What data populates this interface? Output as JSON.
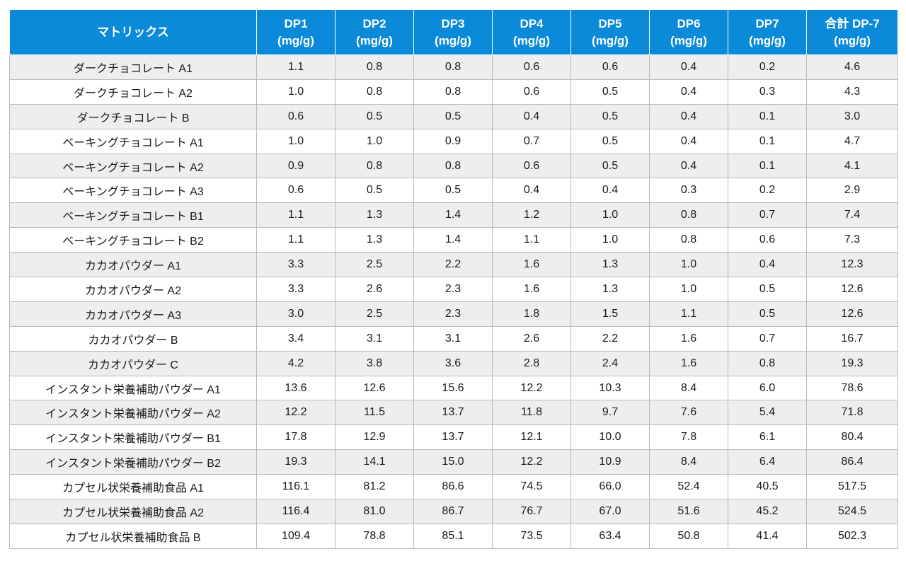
{
  "table": {
    "headers": [
      {
        "l1": "マトリックス",
        "l2": ""
      },
      {
        "l1": "DP1",
        "l2": "(mg/g)"
      },
      {
        "l1": "DP2",
        "l2": "(mg/g)"
      },
      {
        "l1": "DP3",
        "l2": "(mg/g)"
      },
      {
        "l1": "DP4",
        "l2": "(mg/g)"
      },
      {
        "l1": "DP5",
        "l2": "(mg/g)"
      },
      {
        "l1": "DP6",
        "l2": "(mg/g)"
      },
      {
        "l1": "DP7",
        "l2": "(mg/g)"
      },
      {
        "l1": "合計 DP-7",
        "l2": "(mg/g)"
      }
    ],
    "rows": [
      [
        "ダークチョコレート A1",
        "1.1",
        "0.8",
        "0.8",
        "0.6",
        "0.6",
        "0.4",
        "0.2",
        "4.6"
      ],
      [
        "ダークチョコレート A2",
        "1.0",
        "0.8",
        "0.8",
        "0.6",
        "0.5",
        "0.4",
        "0.3",
        "4.3"
      ],
      [
        "ダークチョコレート B",
        "0.6",
        "0.5",
        "0.5",
        "0.4",
        "0.5",
        "0.4",
        "0.1",
        "3.0"
      ],
      [
        "ベーキングチョコレート A1",
        "1.0",
        "1.0",
        "0.9",
        "0.7",
        "0.5",
        "0.4",
        "0.1",
        "4.7"
      ],
      [
        "ベーキングチョコレート A2",
        "0.9",
        "0.8",
        "0.8",
        "0.6",
        "0.5",
        "0.4",
        "0.1",
        "4.1"
      ],
      [
        "ベーキングチョコレート A3",
        "0.6",
        "0.5",
        "0.5",
        "0.4",
        "0.4",
        "0.3",
        "0.2",
        "2.9"
      ],
      [
        "ベーキングチョコレート B1",
        "1.1",
        "1.3",
        "1.4",
        "1.2",
        "1.0",
        "0.8",
        "0.7",
        "7.4"
      ],
      [
        "ベーキングチョコレート B2",
        "1.1",
        "1.3",
        "1.4",
        "1.1",
        "1.0",
        "0.8",
        "0.6",
        "7.3"
      ],
      [
        "カカオパウダー A1",
        "3.3",
        "2.5",
        "2.2",
        "1.6",
        "1.3",
        "1.0",
        "0.4",
        "12.3"
      ],
      [
        "カカオパウダー A2",
        "3.3",
        "2.6",
        "2.3",
        "1.6",
        "1.3",
        "1.0",
        "0.5",
        "12.6"
      ],
      [
        "カカオパウダー A3",
        "3.0",
        "2.5",
        "2.3",
        "1.8",
        "1.5",
        "1.1",
        "0.5",
        "12.6"
      ],
      [
        "カカオパウダー B",
        "3.4",
        "3.1",
        "3.1",
        "2.6",
        "2.2",
        "1.6",
        "0.7",
        "16.7"
      ],
      [
        "カカオパウダー C",
        "4.2",
        "3.8",
        "3.6",
        "2.8",
        "2.4",
        "1.6",
        "0.8",
        "19.3"
      ],
      [
        "インスタント栄養補助パウダー A1",
        "13.6",
        "12.6",
        "15.6",
        "12.2",
        "10.3",
        "8.4",
        "6.0",
        "78.6"
      ],
      [
        "インスタント栄養補助パウダー A2",
        "12.2",
        "11.5",
        "13.7",
        "11.8",
        "9.7",
        "7.6",
        "5.4",
        "71.8"
      ],
      [
        "インスタント栄養補助パウダー B1",
        "17.8",
        "12.9",
        "13.7",
        "12.1",
        "10.0",
        "7.8",
        "6.1",
        "80.4"
      ],
      [
        "インスタント栄養補助パウダー B2",
        "19.3",
        "14.1",
        "15.0",
        "12.2",
        "10.9",
        "8.4",
        "6.4",
        "86.4"
      ],
      [
        "カプセル状栄養補助食品 A1",
        "116.1",
        "81.2",
        "86.6",
        "74.5",
        "66.0",
        "52.4",
        "40.5",
        "517.5"
      ],
      [
        "カプセル状栄養補助食品 A2",
        "116.4",
        "81.0",
        "86.7",
        "76.7",
        "67.0",
        "51.6",
        "45.2",
        "524.5"
      ],
      [
        "カプセル状栄養補助食品 B",
        "109.4",
        "78.8",
        "85.1",
        "73.5",
        "63.4",
        "50.8",
        "41.4",
        "502.3"
      ]
    ]
  }
}
